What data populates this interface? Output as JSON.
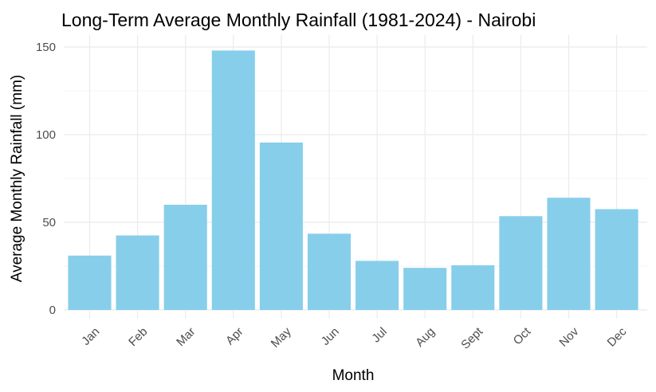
{
  "chart_data": {
    "type": "bar",
    "title": "Long-Term Average Monthly Rainfall (1981-2024) - Nairobi",
    "xlabel": "Month",
    "ylabel": "Average Monthly Rainfall (mm)",
    "categories": [
      "Jan",
      "Feb",
      "Mar",
      "Apr",
      "May",
      "Jun",
      "Jul",
      "Aug",
      "Sept",
      "Oct",
      "Nov",
      "Dec"
    ],
    "values": [
      31,
      42.5,
      60,
      148,
      95.5,
      43.5,
      28,
      24,
      25.5,
      53.5,
      64,
      57.5
    ],
    "ylim": [
      0,
      150
    ],
    "yticks": [
      0,
      50,
      100,
      150
    ],
    "grid": true,
    "bar_color": "#87ceeb",
    "legend": "none"
  }
}
